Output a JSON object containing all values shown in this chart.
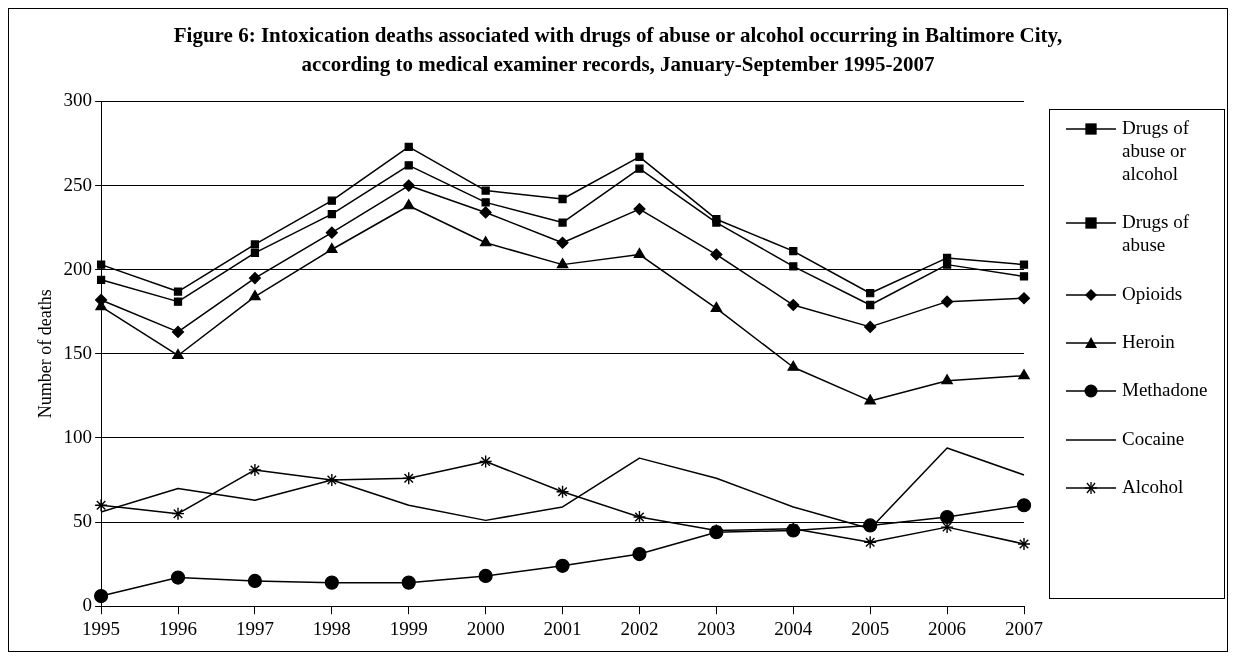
{
  "chart_data": {
    "type": "line",
    "title": "Figure 6: Intoxication deaths associated with drugs of abuse or alcohol occurring in Baltimore City, according to medical examiner records, January-September 1995-2007",
    "ylabel": "Number of deaths",
    "categories": [
      "1995",
      "1996",
      "1997",
      "1998",
      "1999",
      "2000",
      "2001",
      "2002",
      "2003",
      "2004",
      "2005",
      "2006",
      "2007"
    ],
    "ylim": [
      0,
      300
    ],
    "yticks": [
      0,
      50,
      100,
      150,
      200,
      250,
      300
    ],
    "grid": "y",
    "legend": "right",
    "line_style": "solid",
    "series": [
      {
        "name": "Drugs of abuse or alcohol",
        "color": "#000000",
        "marker": "square",
        "values": [
          203,
          187,
          215,
          241,
          273,
          247,
          242,
          267,
          230,
          211,
          186,
          207,
          203
        ]
      },
      {
        "name": "Drugs of abuse",
        "color": "#000000",
        "marker": "square",
        "values": [
          194,
          181,
          210,
          233,
          262,
          240,
          228,
          260,
          228,
          202,
          179,
          203,
          196
        ]
      },
      {
        "name": "Opioids",
        "color": "#000000",
        "marker": "diamond",
        "values": [
          182,
          163,
          195,
          222,
          250,
          234,
          216,
          236,
          209,
          179,
          166,
          181,
          183
        ]
      },
      {
        "name": "Heroin",
        "color": "#000000",
        "marker": "triangle",
        "values": [
          178,
          149,
          184,
          212,
          238,
          216,
          203,
          209,
          177,
          142,
          122,
          134,
          137
        ]
      },
      {
        "name": "Methadone",
        "color": "#000000",
        "marker": "circle",
        "values": [
          6,
          17,
          15,
          14,
          14,
          18,
          24,
          31,
          44,
          45,
          48,
          53,
          60
        ]
      },
      {
        "name": "Cocaine",
        "color": "#000000",
        "marker": "none",
        "values": [
          56,
          70,
          63,
          75,
          60,
          51,
          59,
          88,
          76,
          59,
          46,
          94,
          78
        ]
      },
      {
        "name": "Alcohol",
        "color": "#000000",
        "marker": "cross",
        "values": [
          60,
          55,
          81,
          75,
          76,
          86,
          68,
          53,
          45,
          46,
          38,
          47,
          37
        ]
      }
    ]
  }
}
